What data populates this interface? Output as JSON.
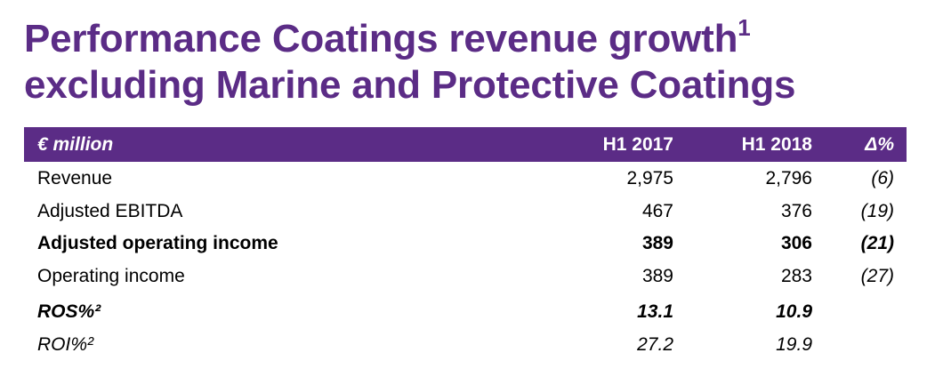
{
  "title": {
    "line1": "Performance Coatings revenue growth",
    "line1_sup": "1",
    "line2": "excluding Marine and Protective Coatings"
  },
  "table": {
    "header": {
      "label": "€ million",
      "col1": "H1 2017",
      "col2": "H1 2018",
      "col3": "Δ%"
    },
    "rows": [
      {
        "label": "Revenue",
        "col1": "2,975",
        "col2": "2,796",
        "col3": "(6)",
        "style": "normal"
      },
      {
        "label": "Adjusted EBITDA",
        "col1": "467",
        "col2": "376",
        "col3": "(19)",
        "style": "normal"
      },
      {
        "label": "Adjusted operating income",
        "col1": "389",
        "col2": "306",
        "col3": "(21)",
        "style": "bold"
      },
      {
        "label": "Operating income",
        "col1": "389",
        "col2": "283",
        "col3": "(27)",
        "style": "normal"
      },
      {
        "label": "ROS%²",
        "col1": "13.1",
        "col2": "10.9",
        "col3": "",
        "style": "bold-italic"
      },
      {
        "label": "ROI%²",
        "col1": "27.2",
        "col2": "19.9",
        "col3": "",
        "style": "italic"
      }
    ]
  },
  "colors": {
    "brand_purple": "#5b2c86",
    "header_text": "#ffffff",
    "body_text": "#000000"
  }
}
